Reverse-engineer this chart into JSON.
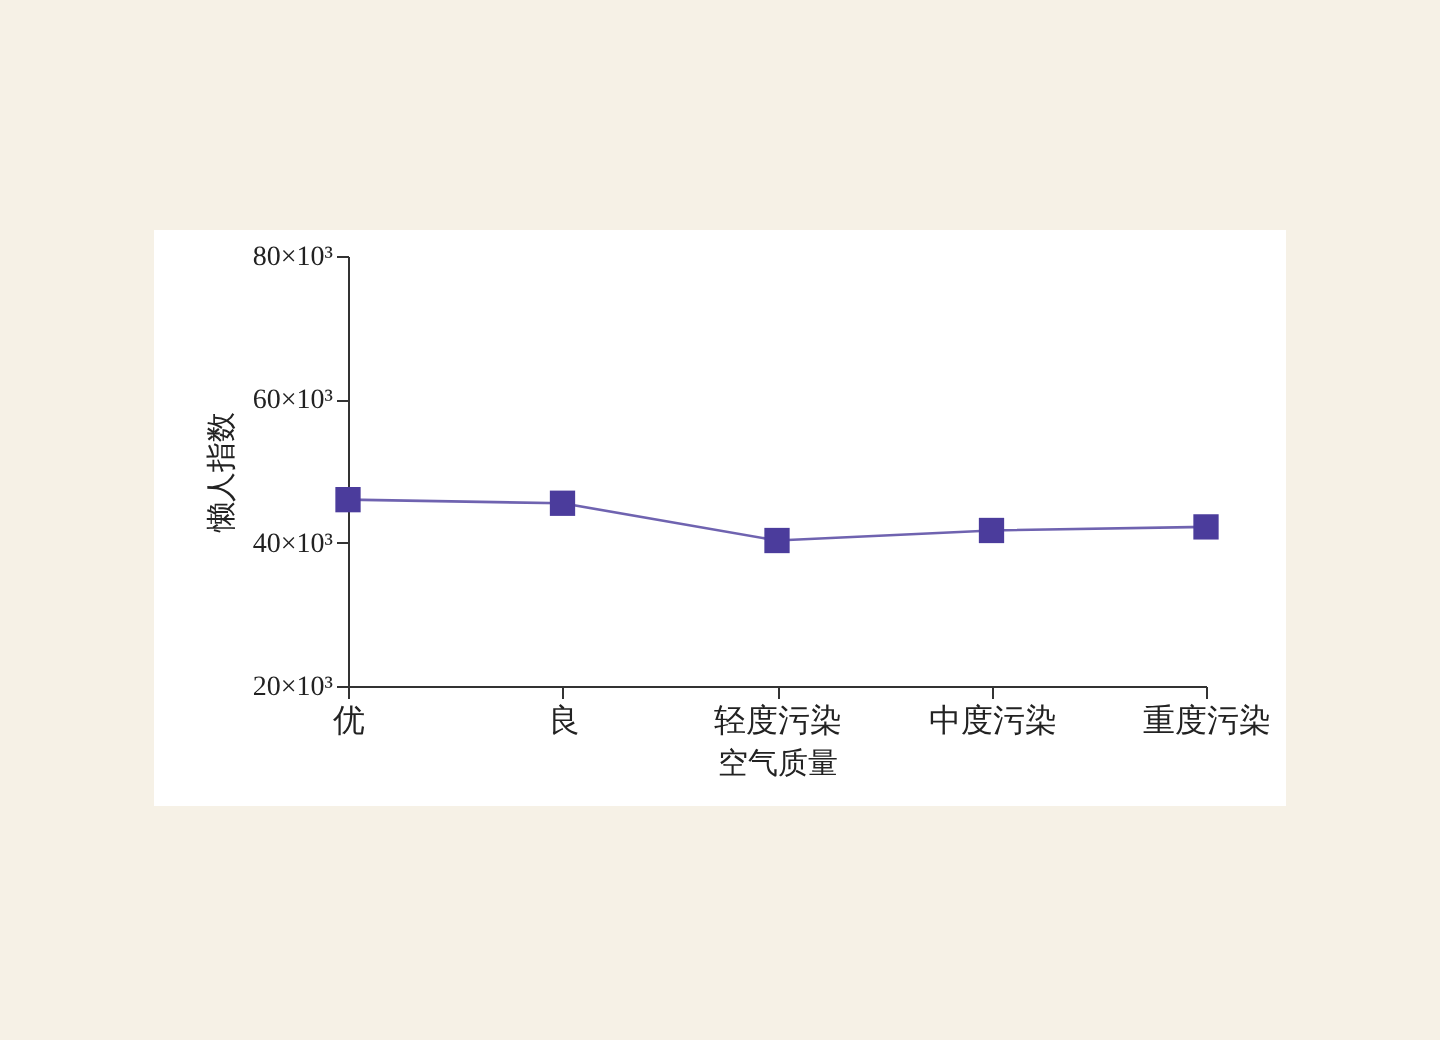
{
  "chart_data": {
    "type": "line",
    "xlabel": "空气质量",
    "ylabel": "懒人指数",
    "categories": [
      "优",
      "良",
      "轻度污染",
      "中度污染",
      "重度污染"
    ],
    "series": [
      {
        "color": "#4b3c9c",
        "values": [
          46000,
          45500,
          40300,
          41700,
          42200
        ]
      }
    ],
    "ylim": [
      20000,
      80000
    ],
    "yticks": [
      {
        "value": 20000,
        "label": "20×10³"
      },
      {
        "value": 40000,
        "label": "40×10³"
      },
      {
        "value": 60000,
        "label": "60×10³"
      },
      {
        "value": 80000,
        "label": "80×10³"
      }
    ],
    "grid": false,
    "marker": "square",
    "line_style": "solid"
  }
}
